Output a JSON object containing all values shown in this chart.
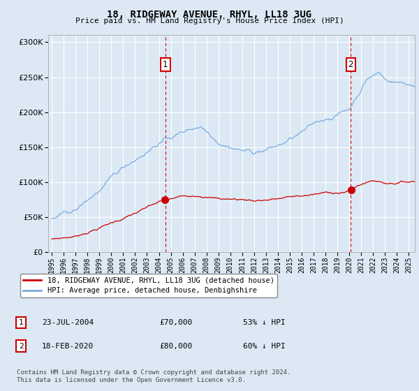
{
  "title": "18, RIDGEWAY AVENUE, RHYL, LL18 3UG",
  "subtitle": "Price paid vs. HM Land Registry's House Price Index (HPI)",
  "bg_color": "#dce9f5",
  "plot_bg_color": "#dce9f5",
  "red_line_color": "#cc0000",
  "blue_line_color": "#7aace0",
  "sale1_date_x": 2004.55,
  "sale1_price": 70000,
  "sale2_date_x": 2020.12,
  "sale2_price": 80000,
  "ylim": [
    0,
    310000
  ],
  "xlim": [
    1994.7,
    2025.5
  ],
  "yticks": [
    0,
    50000,
    100000,
    150000,
    200000,
    250000,
    300000
  ],
  "xticks": [
    1995,
    1996,
    1997,
    1998,
    1999,
    2000,
    2001,
    2002,
    2003,
    2004,
    2005,
    2006,
    2007,
    2008,
    2009,
    2010,
    2011,
    2012,
    2013,
    2014,
    2015,
    2016,
    2017,
    2018,
    2019,
    2020,
    2021,
    2022,
    2023,
    2024,
    2025
  ],
  "legend_label_red": "18, RIDGEWAY AVENUE, RHYL, LL18 3UG (detached house)",
  "legend_label_blue": "HPI: Average price, detached house, Denbighshire",
  "annotation1_label": "1",
  "annotation1_date": "23-JUL-2004",
  "annotation1_price": "£70,000",
  "annotation1_hpi": "53% ↓ HPI",
  "annotation2_label": "2",
  "annotation2_date": "18-FEB-2020",
  "annotation2_price": "£80,000",
  "annotation2_hpi": "60% ↓ HPI",
  "footer": "Contains HM Land Registry data © Crown copyright and database right 2024.\nThis data is licensed under the Open Government Licence v3.0."
}
